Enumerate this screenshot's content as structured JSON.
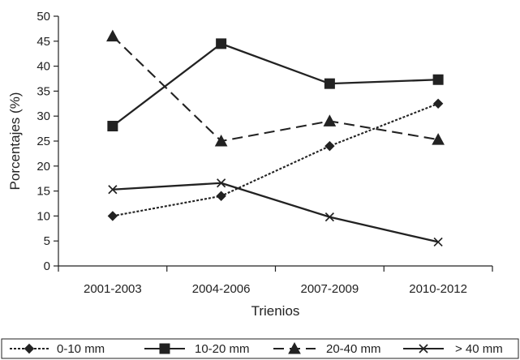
{
  "chart_data": {
    "type": "line",
    "title": "",
    "xlabel": "Trienios",
    "ylabel": "Porcentajes (%)",
    "categories": [
      "2001-2003",
      "2004-2006",
      "2007-2009",
      "2010-2012"
    ],
    "ylim": [
      0,
      50
    ],
    "yticks": [
      0,
      5,
      10,
      15,
      20,
      25,
      30,
      35,
      40,
      45,
      50
    ],
    "grid": false,
    "legend_position": "bottom",
    "series": [
      {
        "name": "0-10 mm",
        "values": [
          10.0,
          14.0,
          24.0,
          32.5
        ],
        "marker": "diamond",
        "line_style": "dotted",
        "color": "#222222"
      },
      {
        "name": "10-20 mm",
        "values": [
          28.0,
          44.5,
          36.5,
          37.3
        ],
        "marker": "square",
        "line_style": "solid",
        "color": "#222222"
      },
      {
        "name": "20-40 mm",
        "values": [
          46.0,
          25.0,
          29.0,
          25.3
        ],
        "marker": "triangle",
        "line_style": "dashed",
        "color": "#222222"
      },
      {
        "name": "> 40 mm",
        "values": [
          15.3,
          16.6,
          9.8,
          4.8
        ],
        "marker": "x",
        "line_style": "solid",
        "color": "#222222"
      }
    ]
  }
}
